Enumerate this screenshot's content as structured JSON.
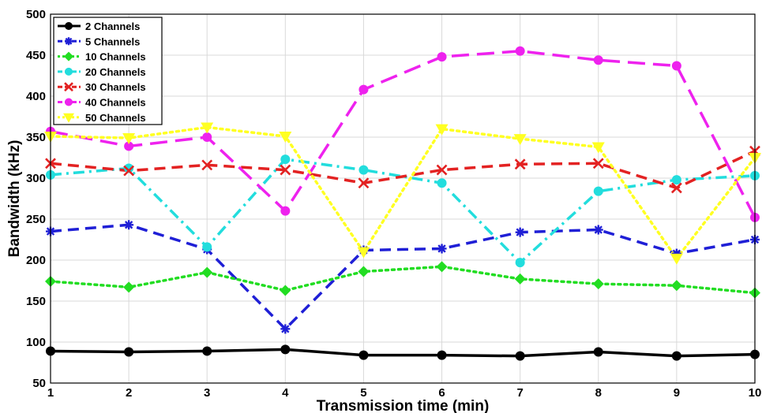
{
  "chart_data": {
    "type": "line",
    "xlabel": "Transmission time (min)",
    "ylabel": "Bandwidth  (kHz)",
    "xlim": [
      1,
      10
    ],
    "ylim": [
      50,
      500
    ],
    "x": [
      1,
      2,
      3,
      4,
      5,
      6,
      7,
      8,
      9,
      10
    ],
    "x_ticks": [
      "1",
      "2",
      "3",
      "4",
      "5",
      "6",
      "7",
      "8",
      "9",
      "10"
    ],
    "y_ticks": [
      "50",
      "100",
      "150",
      "200",
      "250",
      "300",
      "350",
      "400",
      "450",
      "500"
    ],
    "grid": true,
    "legend_position": "top-left",
    "series": [
      {
        "name": "2 Channels",
        "color": "#000000",
        "dash": "solid",
        "marker": "circle",
        "values": [
          89,
          88,
          89,
          91,
          84,
          84,
          83,
          88,
          83,
          85
        ]
      },
      {
        "name": "5 Channels",
        "color": "#1f1fd6",
        "dash": "dashed",
        "marker": "asterisk",
        "values": [
          235,
          243,
          213,
          116,
          212,
          214,
          234,
          237,
          208,
          225
        ]
      },
      {
        "name": "10 Channels",
        "color": "#22dd22",
        "dash": "dotted",
        "marker": "diamond",
        "values": [
          174,
          167,
          185,
          163,
          186,
          192,
          177,
          171,
          169,
          160
        ]
      },
      {
        "name": "20 Channels",
        "color": "#22dddd",
        "dash": "dashdot",
        "marker": "circle",
        "values": [
          304,
          312,
          216,
          323,
          310,
          294,
          197,
          284,
          298,
          303
        ]
      },
      {
        "name": "30 Channels",
        "color": "#e32222",
        "dash": "dashed",
        "marker": "x",
        "values": [
          318,
          309,
          316,
          310,
          294,
          310,
          317,
          318,
          288,
          333
        ]
      },
      {
        "name": "40 Channels",
        "color": "#ee22ee",
        "dash": "longdash",
        "marker": "circle",
        "values": [
          357,
          339,
          350,
          260,
          408,
          448,
          455,
          444,
          437,
          252
        ]
      },
      {
        "name": "50 Channels",
        "color": "#ffff22",
        "dash": "dotted",
        "marker": "triangle",
        "values": [
          351,
          349,
          362,
          351,
          210,
          360,
          348,
          338,
          202,
          325
        ]
      }
    ]
  }
}
